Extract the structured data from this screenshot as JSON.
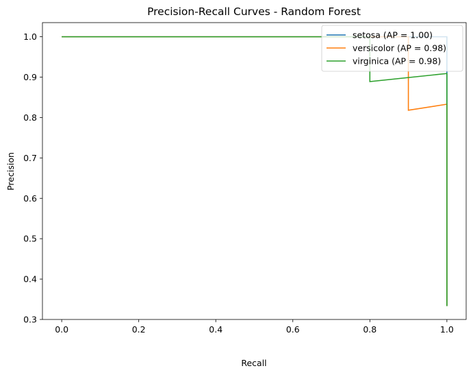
{
  "chart_data": {
    "type": "line",
    "title": "Precision-Recall Curves - Random Forest",
    "xlabel": "Recall",
    "ylabel": "Precision",
    "xlim": [
      -0.05,
      1.05
    ],
    "ylim": [
      0.3,
      1.035
    ],
    "xticks": [
      "0.0",
      "0.2",
      "0.4",
      "0.6",
      "0.8",
      "1.0"
    ],
    "yticks": [
      "0.3",
      "0.4",
      "0.5",
      "0.6",
      "0.7",
      "0.8",
      "0.9",
      "1.0"
    ],
    "grid": false,
    "legend_position": "top-right",
    "series": [
      {
        "name": "setosa (AP = 1.00)",
        "color": "#1f77b4",
        "x": [
          0.0,
          1.0,
          1.0
        ],
        "y": [
          1.0,
          1.0,
          0.333
        ]
      },
      {
        "name": "versicolor (AP = 0.98)",
        "color": "#ff7f0e",
        "x": [
          0.0,
          0.9,
          0.9,
          1.0,
          1.0
        ],
        "y": [
          1.0,
          1.0,
          0.818,
          0.833,
          0.333
        ]
      },
      {
        "name": "virginica (AP = 0.98)",
        "color": "#2ca02c",
        "x": [
          0.0,
          0.8,
          0.8,
          1.0,
          1.0
        ],
        "y": [
          1.0,
          1.0,
          0.889,
          0.909,
          0.333
        ]
      }
    ]
  }
}
